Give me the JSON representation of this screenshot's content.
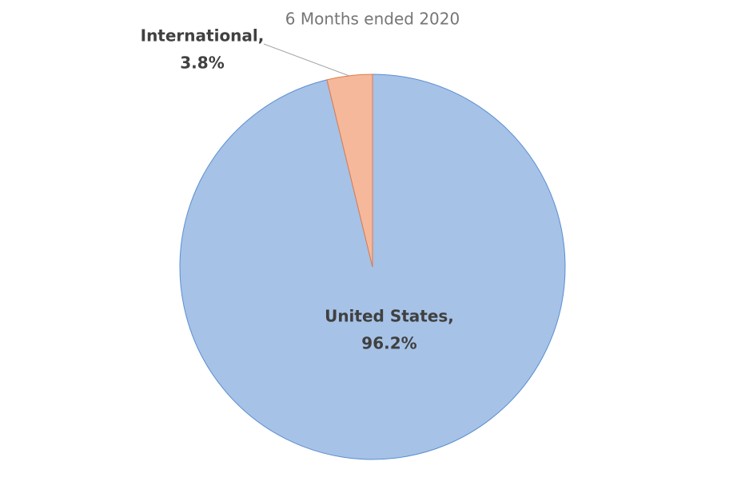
{
  "chart_data": {
    "type": "pie",
    "title": "6 Months ended 2020",
    "categories": [
      "United States,",
      "International,"
    ],
    "values": [
      96.2,
      3.8
    ],
    "value_labels": [
      "96.2%",
      "3.8%"
    ],
    "colors": [
      "#a6c2e7",
      "#f5b89b"
    ]
  }
}
